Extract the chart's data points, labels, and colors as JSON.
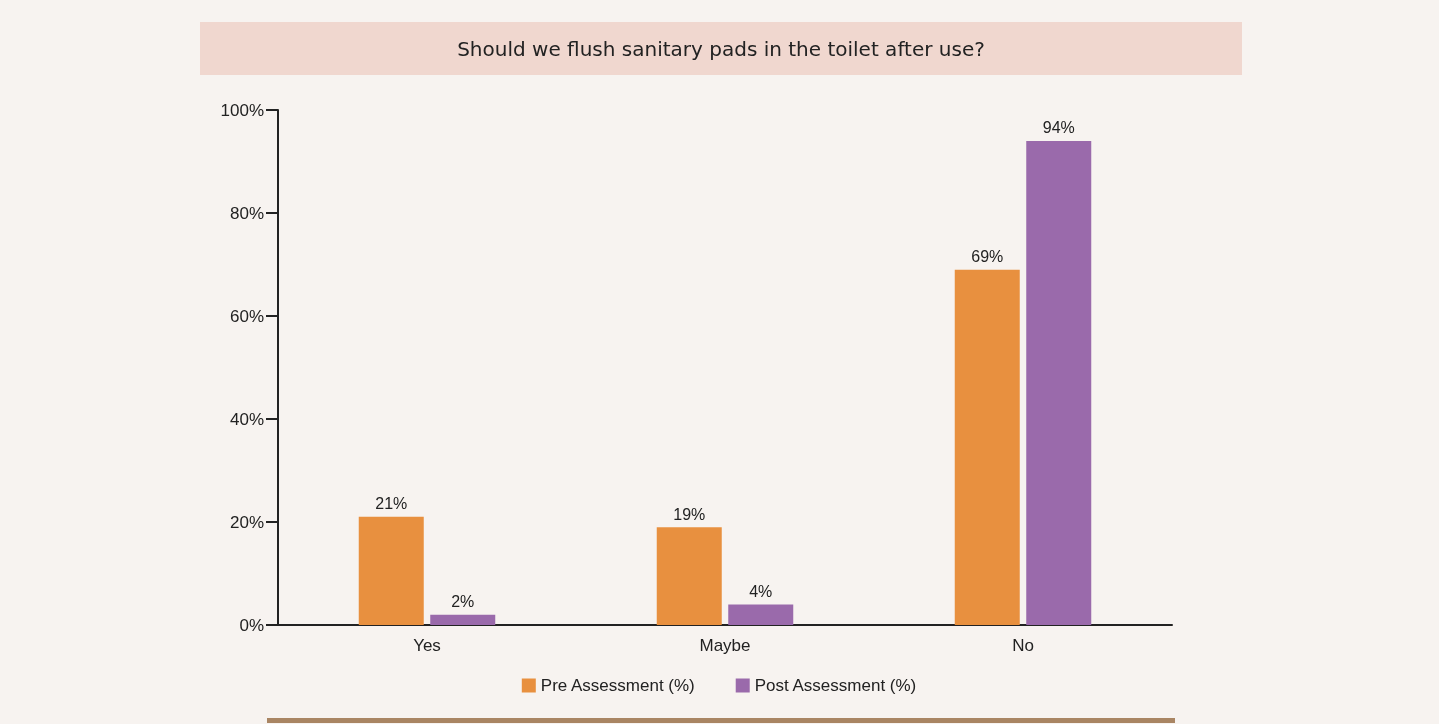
{
  "chart_data": {
    "type": "bar",
    "title": "Should we flush sanitary pads in the toilet after use?",
    "categories": [
      "Yes",
      "Maybe",
      "No"
    ],
    "series": [
      {
        "name": "Pre Assessment (%)",
        "color": "#e8903f",
        "values": [
          21,
          19,
          69
        ],
        "value_labels": [
          "21%",
          "19%",
          "69%"
        ]
      },
      {
        "name": "Post Assessment (%)",
        "color": "#9a6aab",
        "values": [
          2,
          4,
          94
        ],
        "value_labels": [
          "2%",
          "4%",
          "94%"
        ]
      }
    ],
    "ylim": [
      0,
      100
    ],
    "yticks": [
      {
        "value": 0,
        "label": "0%"
      },
      {
        "value": 20,
        "label": "20%"
      },
      {
        "value": 40,
        "label": "40%"
      },
      {
        "value": 60,
        "label": "60%"
      },
      {
        "value": 80,
        "label": "80%"
      },
      {
        "value": 100,
        "label": "100%"
      }
    ],
    "grid": false,
    "legend": "bottom"
  }
}
